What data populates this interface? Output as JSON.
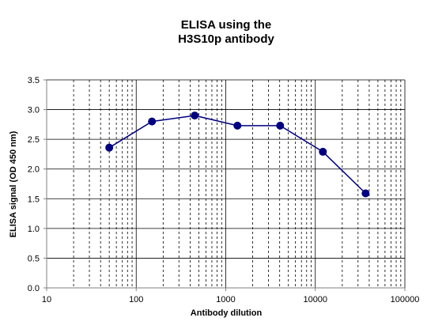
{
  "chart_data": {
    "type": "line",
    "title_lines": [
      "ELISA using the",
      "H3S10p antibody"
    ],
    "xlabel": "Antibody  dilution",
    "ylabel": "ELISA  signal (OD 450 nm)",
    "x_scale": "log",
    "xlim": [
      10,
      100000
    ],
    "ylim": [
      0.0,
      3.5
    ],
    "x_tick_labels": [
      "10",
      "100",
      "1000",
      "10000",
      "100000"
    ],
    "x_tick_values": [
      10,
      100,
      1000,
      10000,
      100000
    ],
    "y_tick_labels": [
      "0.0",
      "0.5",
      "1.0",
      "1.5",
      "2.0",
      "2.5",
      "3.0",
      "3.5"
    ],
    "y_tick_values": [
      0.0,
      0.5,
      1.0,
      1.5,
      2.0,
      2.5,
      3.0,
      3.5
    ],
    "grid": {
      "horizontal_major": true,
      "vertical_major": true,
      "vertical_minor": true,
      "vertical_minor_style": "dashed"
    },
    "legend": "none",
    "series": [
      {
        "x": [
          50,
          150,
          450,
          1350,
          4050,
          12150,
          36450
        ],
        "y": [
          2.36,
          2.8,
          2.9,
          2.73,
          2.73,
          2.29,
          1.59
        ],
        "color": "#000080",
        "marker": "circle"
      }
    ]
  }
}
